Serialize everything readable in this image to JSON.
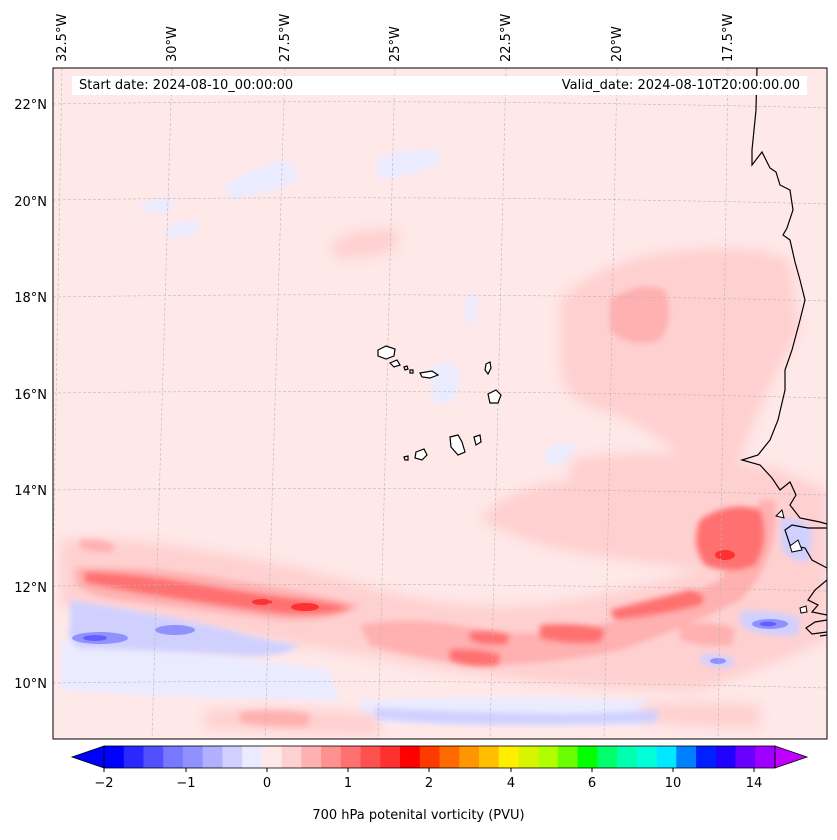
{
  "map": {
    "projection": "lambert-conformal",
    "extent": {
      "lon": [
        -32.8,
        -15.0
      ],
      "lat": [
        8.9,
        22.8
      ]
    },
    "lon_labels": [
      "32.5°W",
      "30°W",
      "27.5°W",
      "25°W",
      "22.5°W",
      "20°W",
      "17.5°W"
    ],
    "lat_labels": [
      "22°N",
      "20°N",
      "18°N",
      "16°N",
      "14°N",
      "12°N",
      "10°N"
    ],
    "gridlines": true,
    "features": [
      "coastline-west-africa",
      "cape-verde-islands"
    ]
  },
  "info": {
    "start_date": "Start date: 2024-08-10_00:00:00",
    "valid_date": "Valid_date: 2024-08-10T20:00:00.00"
  },
  "field": {
    "variable": "700 hPa potential vorticity",
    "background_level": "0 to 0.25 PVU",
    "regions": [
      {
        "name": "positive-band-west",
        "approx_lon": [
          -32.5,
          -24.0
        ],
        "approx_lat": [
          11.5,
          12.3
        ],
        "max_pvu": 1.5
      },
      {
        "name": "positive-band-central",
        "approx_lon": [
          -24.0,
          -17.5
        ],
        "approx_lat": [
          10.3,
          11.5
        ],
        "max_pvu": 1.0
      },
      {
        "name": "positive-maximum-east",
        "approx_lon": [
          -19.5,
          -16.0
        ],
        "approx_lat": [
          11.8,
          13.5
        ],
        "max_pvu": 1.0
      },
      {
        "name": "negative-band-west",
        "approx_lon": [
          -32.5,
          -25.0
        ],
        "approx_lat": [
          10.3,
          11.3
        ],
        "min_pvu": -1.0
      },
      {
        "name": "negative-band-south",
        "approx_lon": [
          -26.0,
          -17.0
        ],
        "approx_lat": [
          9.2,
          9.7
        ],
        "min_pvu": -0.5
      },
      {
        "name": "negative-spot-east",
        "approx_lon": [
          -17.5,
          -16.0
        ],
        "approx_lat": [
          10.8,
          11.3
        ],
        "min_pvu": -1.0
      }
    ]
  },
  "colorbar": {
    "label": "700 hPa potenital vorticity (PVU)",
    "ticks": [
      "−2",
      "−1",
      "0",
      "1",
      "2",
      "4",
      "6",
      "10",
      "14"
    ],
    "extend": "both",
    "colors": [
      "#0000ff",
      "#2828ff",
      "#5050ff",
      "#7878ff",
      "#9090ff",
      "#b0b0ff",
      "#d0d0ff",
      "#ebebff",
      "#ffe8e8",
      "#ffd0d0",
      "#ffb0b0",
      "#ff9090",
      "#ff7070",
      "#ff5050",
      "#ff3030",
      "#ff0000",
      "#ff3a00",
      "#ff6a00",
      "#ff9500",
      "#ffbf00",
      "#ffee00",
      "#d8f500",
      "#b0ff00",
      "#6aff00",
      "#00ff00",
      "#00ff6a",
      "#00ffb0",
      "#00ffd8",
      "#00e8ff",
      "#0080ff",
      "#0020ff",
      "#2000ff",
      "#6a00ff",
      "#a000ff"
    ]
  }
}
